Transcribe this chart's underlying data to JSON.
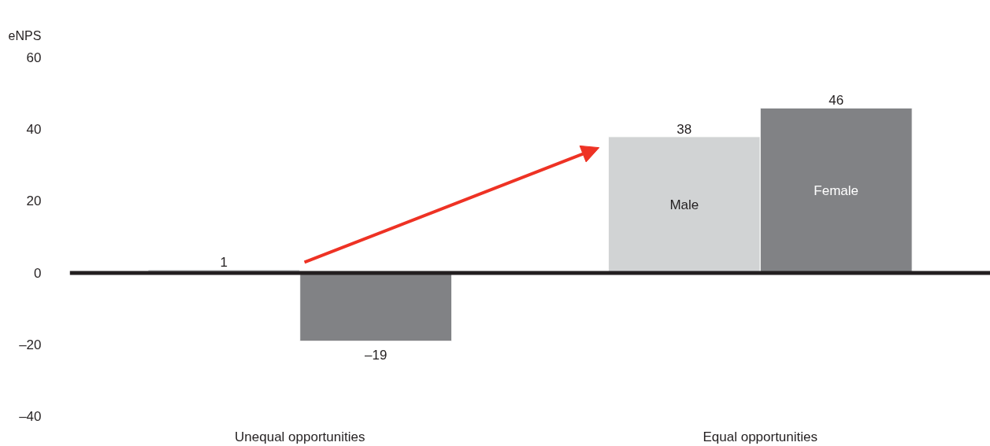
{
  "chart_data": {
    "type": "bar",
    "ylabel": "eNPS",
    "categories": [
      "Unequal opportunities",
      "Equal opportunities"
    ],
    "series": [
      {
        "name": "Male",
        "color": "#d1d3d4",
        "values": [
          1,
          38
        ],
        "value_labels": [
          "1",
          "38"
        ]
      },
      {
        "name": "Female",
        "color": "#818285",
        "values": [
          -19,
          46
        ],
        "value_labels": [
          "–19",
          "46"
        ]
      }
    ],
    "ylim": [
      -40,
      60
    ],
    "yticks": [
      {
        "value": 60,
        "label": "60"
      },
      {
        "value": 40,
        "label": "40"
      },
      {
        "value": 20,
        "label": "20"
      },
      {
        "value": 0,
        "label": "0"
      },
      {
        "value": -20,
        "label": "–20"
      },
      {
        "value": -40,
        "label": "–40"
      }
    ],
    "ref_lines": [
      {
        "axis": "y",
        "value": 0,
        "color": "#231f20"
      }
    ],
    "grid": false
  }
}
